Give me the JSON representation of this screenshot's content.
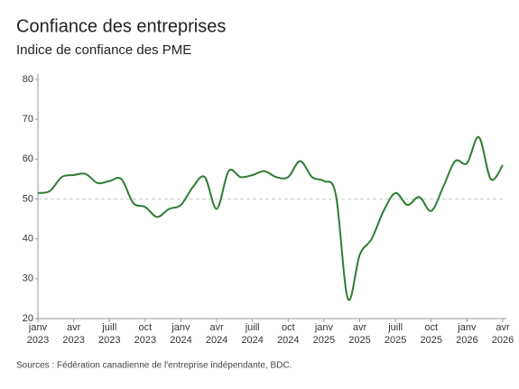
{
  "chart_data": {
    "type": "line",
    "title": "Confiance des entreprises",
    "subtitle": "Indice de confiance des PME",
    "categories": [
      "janv\n2023",
      null,
      null,
      "avr\n2023",
      null,
      null,
      "juill\n2023",
      null,
      null,
      "oct\n2023",
      null,
      null,
      "janv\n2024",
      null,
      null,
      "avr\n2024",
      null,
      null,
      "juill\n2024",
      null,
      null,
      "oct\n2024",
      null,
      null,
      "janv\n2025",
      null,
      null,
      "avr\n2025",
      null,
      null,
      "juill\n2025",
      null,
      null,
      "oct\n2025",
      null,
      null,
      "janv\n2026",
      null,
      null,
      "avr\n2026"
    ],
    "series": [
      {
        "name": "Indice de confiance des PME",
        "color": "#2e7d32",
        "values": [
          51.5,
          52,
          55.5,
          56,
          56.3,
          54,
          54.5,
          55,
          49,
          48,
          45.5,
          47.5,
          48.5,
          53,
          55.5,
          47.5,
          57,
          55.5,
          56,
          57,
          55.5,
          55.5,
          59.5,
          55.5,
          54.5,
          51,
          25,
          36,
          40,
          47,
          51.5,
          48.5,
          50.5,
          47,
          53,
          59.5,
          59,
          65.5,
          55,
          58.5
        ]
      }
    ],
    "ylim": [
      20,
      80
    ],
    "yticks": [
      20,
      30,
      40,
      50,
      60,
      70,
      80
    ],
    "reference_line": 50,
    "grid": false,
    "source": "Sources : Fédération canadienne de l'entreprise indépendante, BDC."
  }
}
